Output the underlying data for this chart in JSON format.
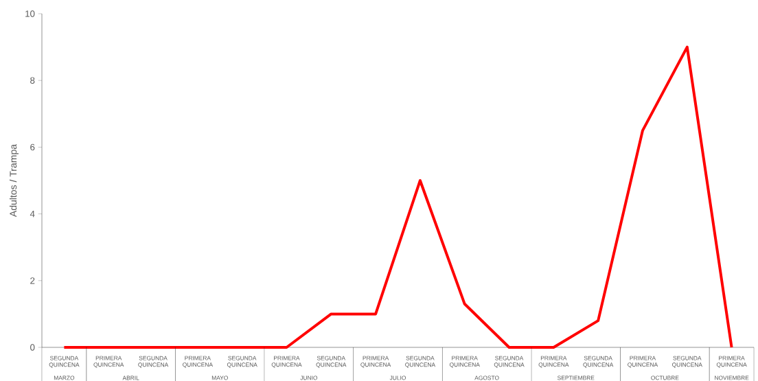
{
  "chart_data": {
    "type": "line",
    "ylabel": "Adultos / Trampa",
    "categories": [
      "SEGUNDA QUINCENA",
      "PRIMERA QUINCENA",
      "SEGUNDA QUINCENA",
      "PRIMERA QUINCENA",
      "SEGUNDA QUINCENA",
      "PRIMERA QUINCENA",
      "SEGUNDA QUINCENA",
      "PRIMERA QUINCENA",
      "SEGUNDA QUINCENA",
      "PRIMERA QUINCENA",
      "SEGUNDA QUINCENA",
      "PRIMERA QUINCENA",
      "SEGUNDA QUINCENA",
      "PRIMERA QUINCENA",
      "SEGUNDA QUINCENA",
      "PRIMERA QUINCENA"
    ],
    "series": [
      {
        "color": "#ff0000",
        "values": [
          0,
          0,
          0,
          0,
          0,
          0,
          1,
          1,
          5,
          1.3,
          0,
          0,
          0.8,
          6.5,
          9,
          0
        ]
      }
    ],
    "ylim": [
      0,
      10
    ],
    "yticks": [
      0,
      2,
      4,
      6,
      8,
      10
    ],
    "marker": "none",
    "line_style": "solid",
    "annotations": [
      "MARZO",
      "ABRIL",
      "MAYO",
      "JUNIO",
      "JULIO",
      "AGOSTO",
      "SEPTIEMBRE",
      "OCTUBRE",
      "NOVIEMBRE"
    ]
  }
}
